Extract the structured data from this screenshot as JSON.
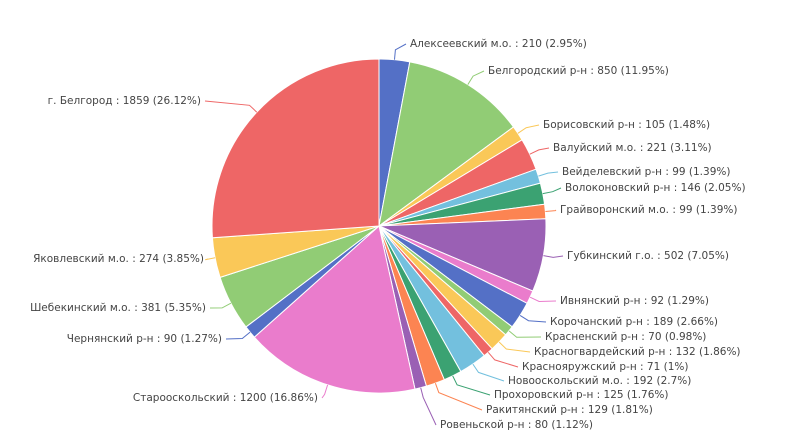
{
  "chart_data": {
    "type": "pie",
    "slices": [
      {
        "label": "Алексеевский м.о.",
        "value": 210,
        "percent": "2.95%",
        "color": "#5470c6"
      },
      {
        "label": "Белгородский р-н",
        "value": 850,
        "percent": "11.95%",
        "color": "#91cc75"
      },
      {
        "label": "Борисовский р-н",
        "value": 105,
        "percent": "1.48%",
        "color": "#fac858"
      },
      {
        "label": "Валуйский м.о.",
        "value": 221,
        "percent": "3.11%",
        "color": "#ee6666"
      },
      {
        "label": "Вейделевский р-н",
        "value": 99,
        "percent": "1.39%",
        "color": "#73c0de"
      },
      {
        "label": "Волоконовский р-н",
        "value": 146,
        "percent": "2.05%",
        "color": "#3ba272"
      },
      {
        "label": "Грайворонский м.о.",
        "value": 99,
        "percent": "1.39%",
        "color": "#fc8452"
      },
      {
        "label": "Губкинский г.о.",
        "value": 502,
        "percent": "7.05%",
        "color": "#9a60b4"
      },
      {
        "label": "Ивнянский р-н",
        "value": 92,
        "percent": "1.29%",
        "color": "#ea7ccc"
      },
      {
        "label": "Корочанский р-н",
        "value": 189,
        "percent": "2.66%",
        "color": "#5470c6"
      },
      {
        "label": "Красненский р-н",
        "value": 70,
        "percent": "0.98%",
        "color": "#91cc75"
      },
      {
        "label": "Красногвардейский р-н",
        "value": 132,
        "percent": "1.86%",
        "color": "#fac858"
      },
      {
        "label": "Краснояружский р-н",
        "value": 71,
        "percent": "1%",
        "color": "#ee6666"
      },
      {
        "label": "Новооскольский м.о.",
        "value": 192,
        "percent": "2.7%",
        "color": "#73c0de"
      },
      {
        "label": "Прохоровский р-н",
        "value": 125,
        "percent": "1.76%",
        "color": "#3ba272"
      },
      {
        "label": "Ракитянский р-н",
        "value": 129,
        "percent": "1.81%",
        "color": "#fc8452"
      },
      {
        "label": "Ровеньской р-н",
        "value": 80,
        "percent": "1.12%",
        "color": "#9a60b4"
      },
      {
        "label": "Старооскольский",
        "value": 1200,
        "percent": "16.86%",
        "color": "#ea7ccc"
      },
      {
        "label": "Чернянский р-н",
        "value": 90,
        "percent": "1.27%",
        "color": "#5470c6"
      },
      {
        "label": "Шебекинский м.о.",
        "value": 381,
        "percent": "5.35%",
        "color": "#91cc75"
      },
      {
        "label": "Яковлевский м.о.",
        "value": 274,
        "percent": "3.85%",
        "color": "#fac858"
      },
      {
        "label": "г. Белгород",
        "value": 1859,
        "percent": "26.12%",
        "color": "#ee6666"
      }
    ]
  }
}
